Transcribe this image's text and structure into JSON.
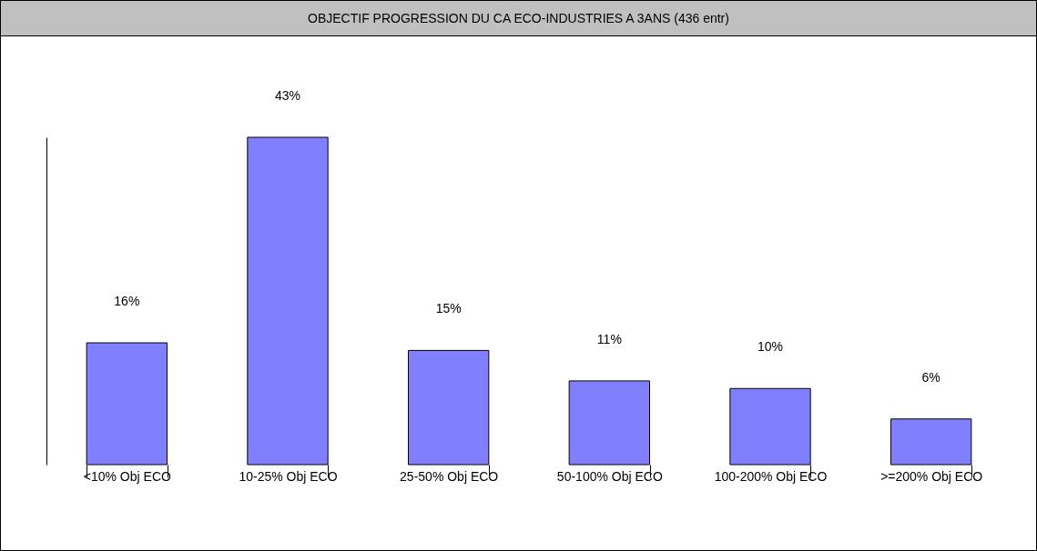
{
  "chart_data": {
    "type": "bar",
    "title": "OBJECTIF PROGRESSION DU CA ECO-INDUSTRIES A 3ANS (436 entr)",
    "categories": [
      "<10% Obj ECO",
      "10-25% Obj ECO",
      "25-50% Obj ECO",
      "50-100% Obj ECO",
      "100-200% Obj ECO",
      ">=200% Obj ECO"
    ],
    "values": [
      16,
      43,
      15,
      11,
      10,
      6
    ],
    "value_labels": [
      "16%",
      "43%",
      "15%",
      "11%",
      "10%",
      "6%"
    ],
    "color": "#8080ff",
    "grid": false
  }
}
